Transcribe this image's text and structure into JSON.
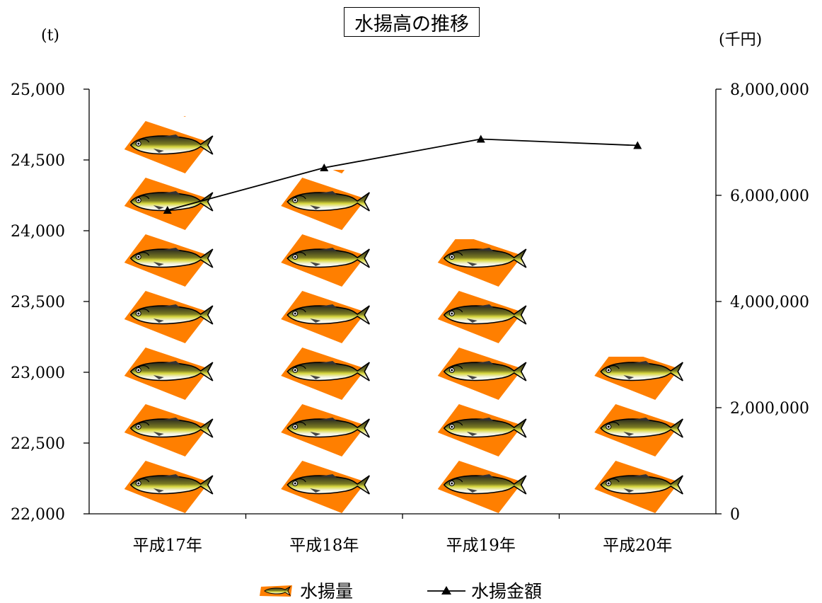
{
  "chart_data": {
    "type": "bar",
    "title": "水揚高の推移",
    "categories": [
      "平成17年",
      "平成18年",
      "平成19年",
      "平成20年"
    ],
    "series": [
      {
        "name": "水揚量",
        "axis": "left",
        "render": "pictograph",
        "values": [
          24810,
          24430,
          23940,
          23110
        ]
      },
      {
        "name": "水揚金額",
        "axis": "right",
        "render": "line",
        "values": [
          5720000,
          6520000,
          7060000,
          6940000
        ]
      }
    ],
    "y_left": {
      "unit": "(t)",
      "ylim": [
        22000,
        25000
      ],
      "tick_labels": [
        "22,000",
        "22,500",
        "23,000",
        "23,500",
        "24,000",
        "24,500",
        "25,000"
      ]
    },
    "y_right": {
      "unit": "(千円)",
      "ylim": [
        0,
        8000000
      ],
      "tick_labels": [
        "0",
        "2,000,000",
        "4,000,000",
        "6,000,000",
        "8,000,000"
      ]
    },
    "grid": false,
    "legend": {
      "position": "bottom-center",
      "entries": [
        "水揚量",
        "水揚金額"
      ]
    },
    "colors": {
      "fish_background": "#ff7f00",
      "line": "#000000",
      "axis": "#000000"
    }
  }
}
